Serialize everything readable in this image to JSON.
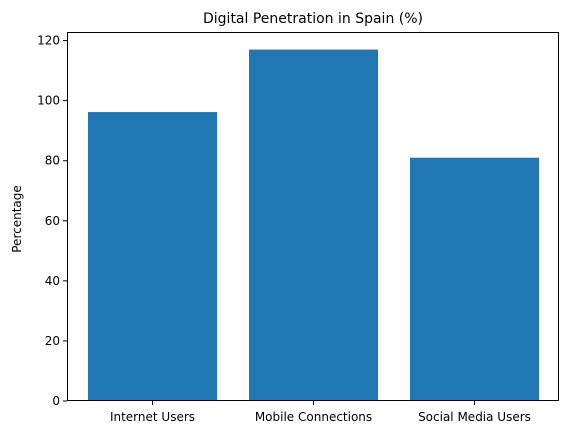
{
  "chart_data": {
    "type": "bar",
    "title": "Digital Penetration in Spain (%)",
    "xlabel": "",
    "ylabel": "Percentage",
    "categories": [
      "Internet Users",
      "Mobile Connections",
      "Social Media Users"
    ],
    "values": [
      96.2,
      117.0,
      81.0
    ],
    "ylim": [
      0,
      122.85
    ],
    "yticks": [
      0,
      20,
      40,
      60,
      80,
      100,
      120
    ],
    "bar_color": "#1f77b4",
    "grid": false,
    "legend": "none"
  }
}
